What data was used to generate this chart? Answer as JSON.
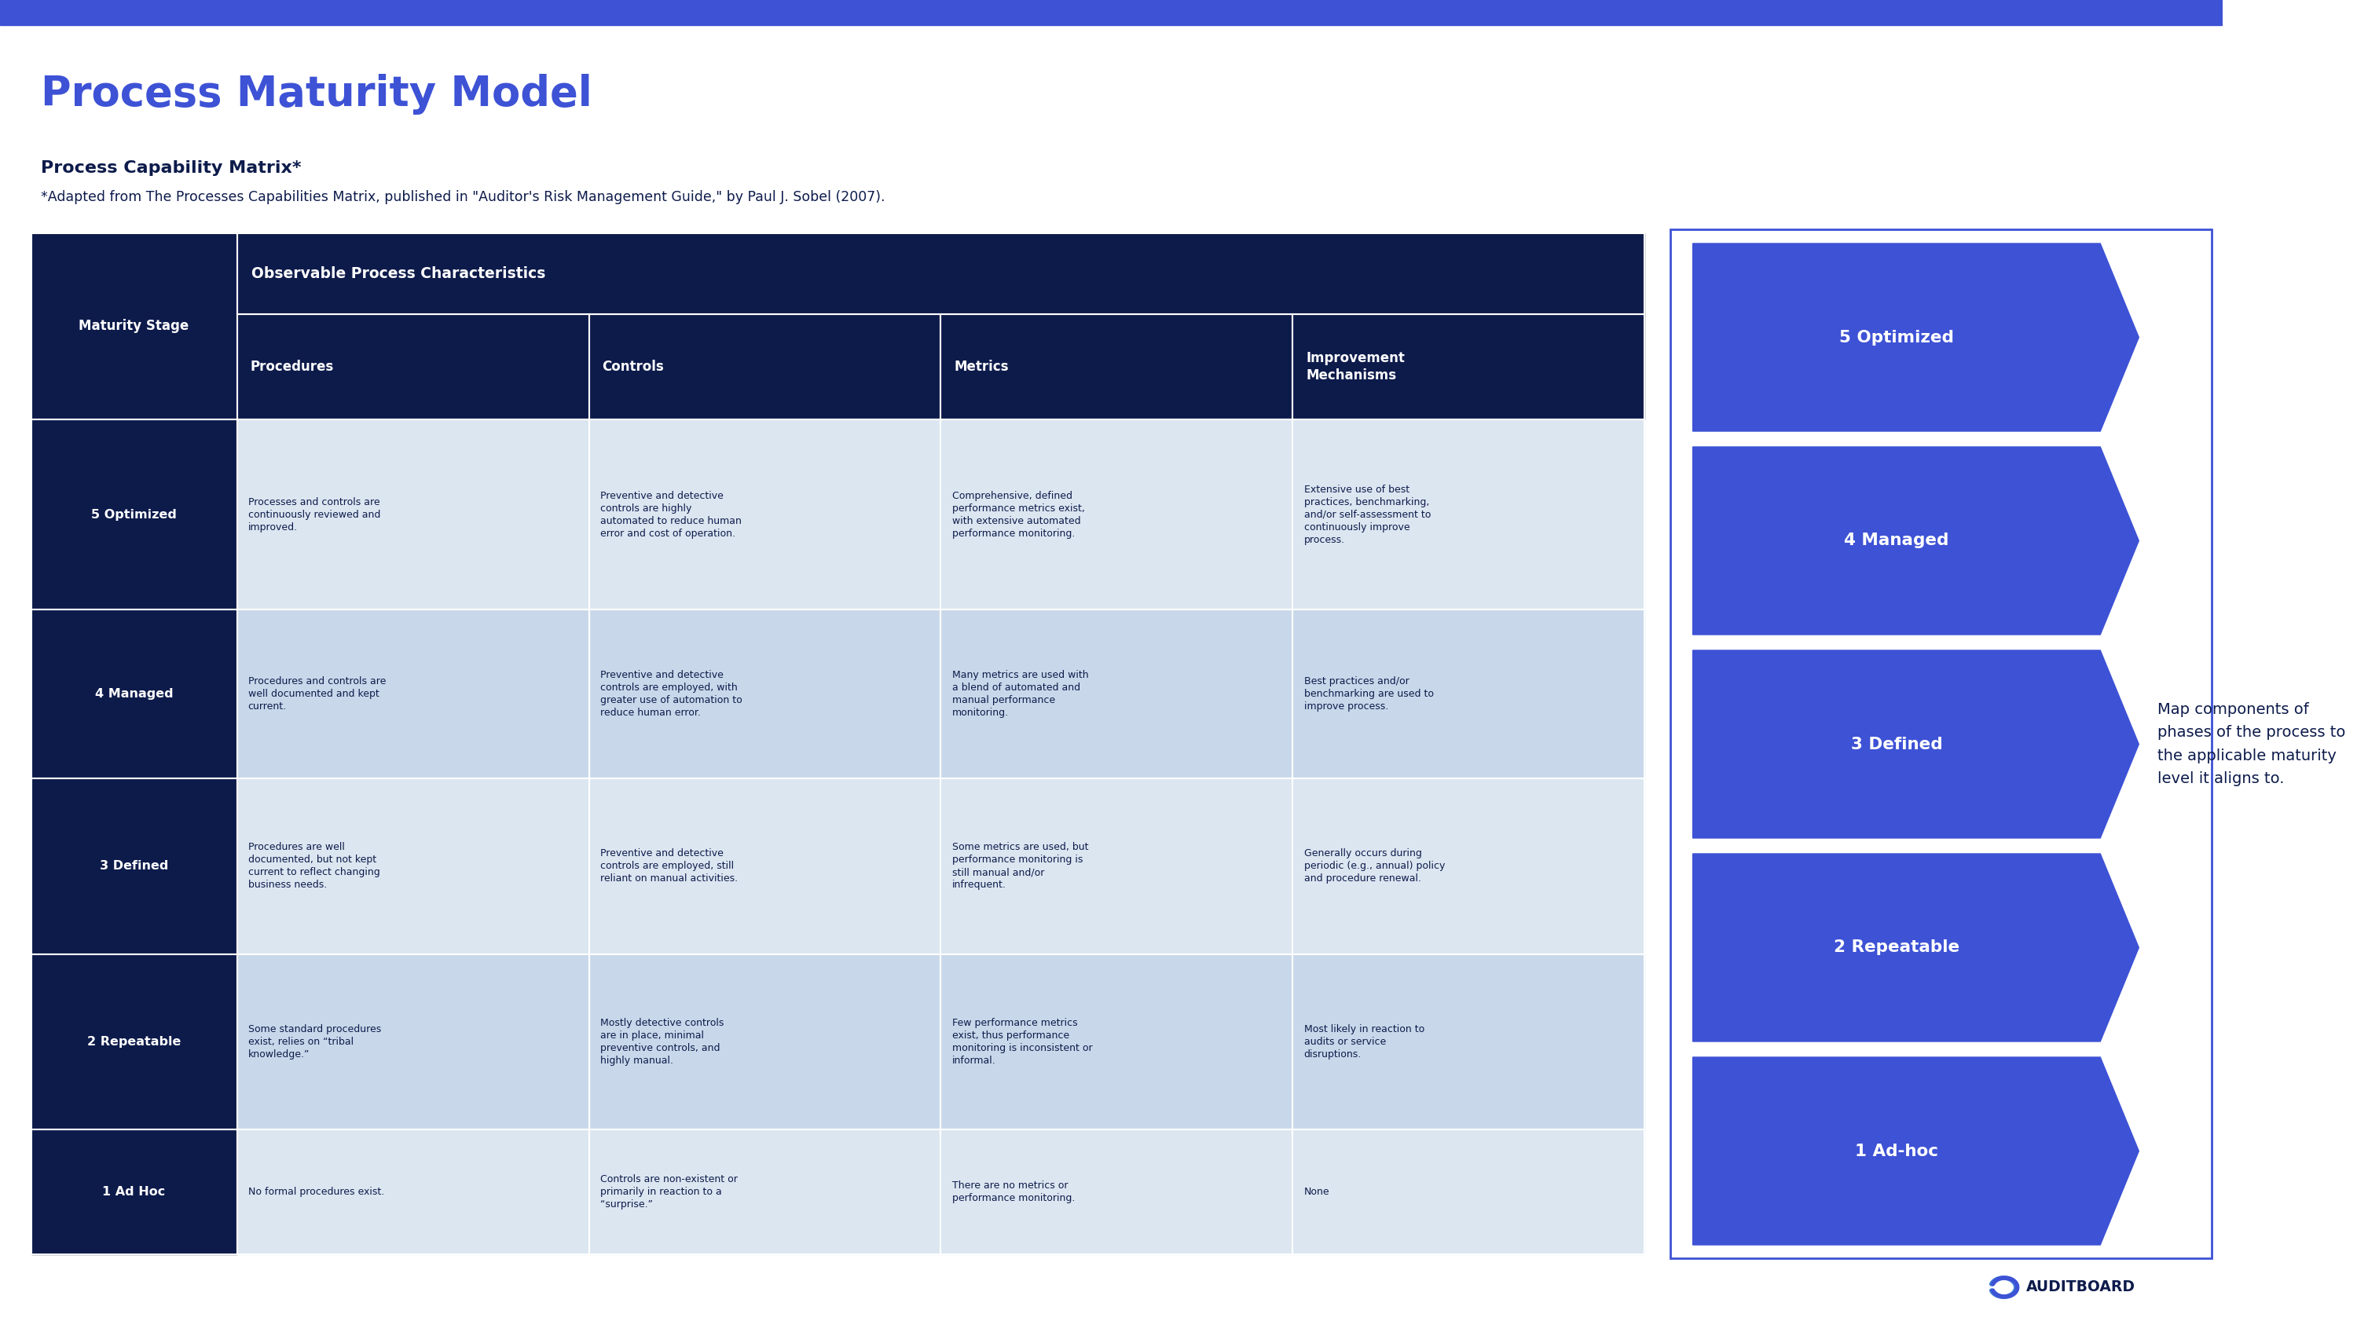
{
  "title": "Process Maturity Model",
  "subtitle1": "Process Capability Matrix*",
  "subtitle2": "*Adapted from The Processes Capabilities Matrix, published in \"Auditor's Risk Management Guide,\" by Paul J. Sobel (2007).",
  "top_bar_color": "#3d52d5",
  "bg_color": "#ffffff",
  "table_header_bg": "#0d1b4b",
  "table_row_colors": [
    "#dce6f1",
    "#c8d8ea"
  ],
  "table_border_color": "#ffffff",
  "title_color": "#3d52d5",
  "subtitle_color": "#0d1b4b",
  "arrow_color": "#3d52d5",
  "arrow_labels": [
    "5 Optimized",
    "4 Managed",
    "3 Defined",
    "2 Repeatable",
    "1 Ad-hoc"
  ],
  "side_note": "Map components of\nphases of the process to\nthe applicable maturity\nlevel it aligns to.",
  "side_note_color": "#0d1b4b",
  "col_headers": [
    "Procedures",
    "Controls",
    "Metrics",
    "Improvement\nMechanisms"
  ],
  "row_headers": [
    "5 Optimized",
    "4 Managed",
    "3 Defined",
    "2 Repeatable",
    "1 Ad Hoc"
  ],
  "cell_data": [
    [
      "Processes and controls are\ncontinuously reviewed and\nimproved.",
      "Preventive and detective\ncontrols are highly\nautomated to reduce human\nerror and cost of operation.",
      "Comprehensive, defined\nperformance metrics exist,\nwith extensive automated\nperformance monitoring.",
      "Extensive use of best\npractices, benchmarking,\nand/or self-assessment to\ncontinuously improve\nprocess."
    ],
    [
      "Procedures and controls are\nwell documented and kept\ncurrent.",
      "Preventive and detective\ncontrols are employed, with\ngreater use of automation to\nreduce human error.",
      "Many metrics are used with\na blend of automated and\nmanual performance\nmonitoring.",
      "Best practices and/or\nbenchmarking are used to\nimprove process."
    ],
    [
      "Procedures are well\ndocumented, but not kept\ncurrent to reflect changing\nbusiness needs.",
      "Preventive and detective\ncontrols are employed, still\nreliant on manual activities.",
      "Some metrics are used, but\nperformance monitoring is\nstill manual and/or\ninfrequent.",
      "Generally occurs during\nperiodic (e.g., annual) policy\nand procedure renewal."
    ],
    [
      "Some standard procedures\nexist, relies on “tribal\nknowledge.”",
      "Mostly detective controls\nare in place, minimal\npreventive controls, and\nhighly manual.",
      "Few performance metrics\nexist, thus performance\nmonitoring is inconsistent or\ninformal.",
      "Most likely in reaction to\naudits or service\ndisruptions."
    ],
    [
      "No formal procedures exist.",
      "Controls are non-existent or\nprimarily in reaction to a\n“surprise.”",
      "There are no metrics or\nperformance monitoring.",
      "None"
    ]
  ]
}
